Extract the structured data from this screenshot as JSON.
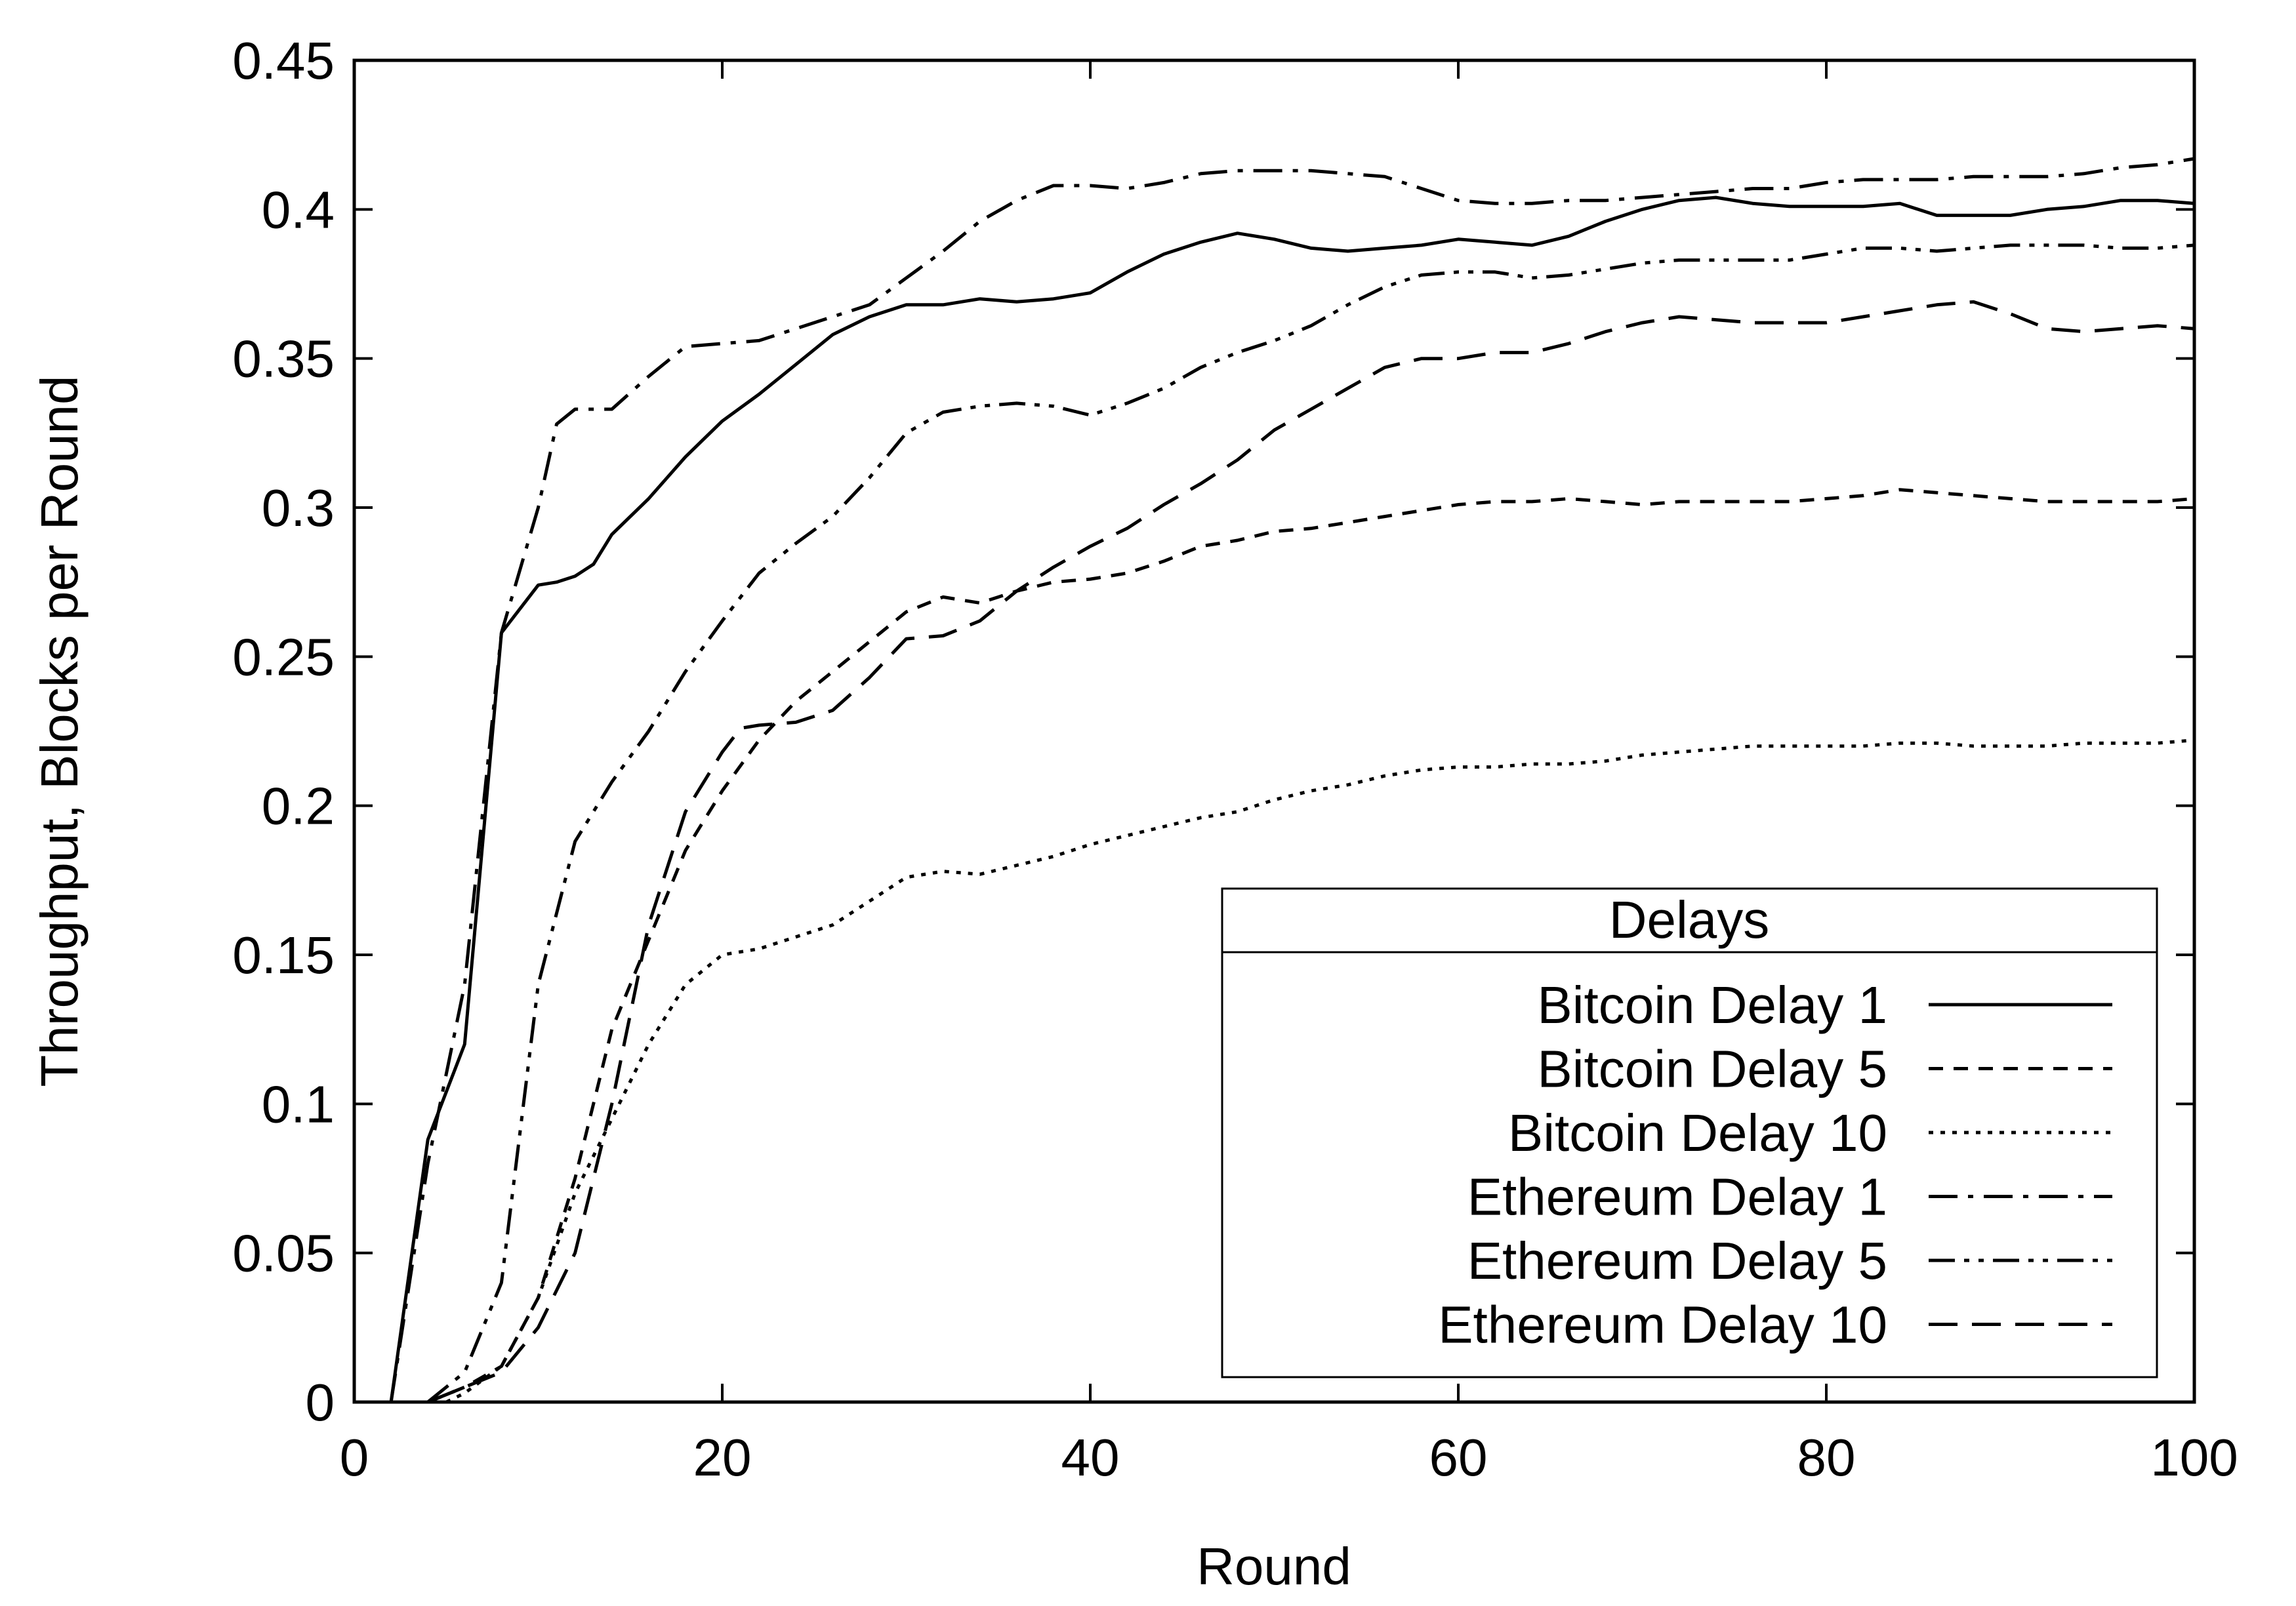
{
  "chart_data": {
    "type": "line",
    "title": "",
    "xlabel": "Round",
    "ylabel": "Throughput, Blocks per Round",
    "xlim": [
      0,
      100
    ],
    "ylim": [
      0,
      0.45
    ],
    "xticks": [
      0,
      20,
      40,
      60,
      80,
      100
    ],
    "xtick_labels": [
      "0",
      "20",
      "40",
      "60",
      "80",
      "100"
    ],
    "yticks": [
      0,
      0.05,
      0.1,
      0.15,
      0.2,
      0.25,
      0.3,
      0.35,
      0.4,
      0.45
    ],
    "ytick_labels": [
      "0",
      "0.05",
      "0.1",
      "0.15",
      "0.2",
      "0.25",
      "0.3",
      "0.35",
      "0.4",
      "0.45"
    ],
    "grid": false,
    "legend": {
      "title": "Delays",
      "placement": "bottom-right"
    },
    "series": [
      {
        "name": "Bitcoin Delay 1",
        "dash": "solid",
        "color": "#000000",
        "x": [
          2,
          4,
          6,
          8,
          10,
          11,
          12,
          13,
          14,
          16,
          18,
          20,
          22,
          24,
          26,
          28,
          30,
          32,
          34,
          36,
          38,
          40,
          42,
          44,
          46,
          48,
          50,
          52,
          54,
          56,
          58,
          60,
          62,
          64,
          66,
          68,
          70,
          72,
          74,
          76,
          78,
          80,
          82,
          84,
          86,
          88,
          90,
          92,
          94,
          96,
          98,
          100
        ],
        "y": [
          0,
          0.088,
          0.12,
          0.258,
          0.274,
          0.275,
          0.277,
          0.281,
          0.291,
          0.303,
          0.317,
          0.329,
          0.338,
          0.348,
          0.358,
          0.364,
          0.368,
          0.368,
          0.37,
          0.369,
          0.37,
          0.372,
          0.379,
          0.385,
          0.389,
          0.392,
          0.39,
          0.387,
          0.386,
          0.387,
          0.388,
          0.39,
          0.389,
          0.388,
          0.391,
          0.396,
          0.4,
          0.403,
          0.404,
          0.402,
          0.401,
          0.401,
          0.401,
          0.402,
          0.398,
          0.398,
          0.398,
          0.4,
          0.401,
          0.403,
          0.403,
          0.402
        ]
      },
      {
        "name": "Bitcoin Delay 5",
        "dash": "short-dash",
        "color": "#000000",
        "x": [
          4,
          6,
          8,
          10,
          12,
          14,
          16,
          18,
          20,
          22,
          24,
          26,
          28,
          30,
          32,
          34,
          36,
          38,
          40,
          42,
          44,
          46,
          48,
          50,
          52,
          54,
          56,
          58,
          60,
          62,
          64,
          66,
          68,
          70,
          72,
          74,
          76,
          78,
          80,
          82,
          84,
          86,
          88,
          90,
          92,
          94,
          96,
          98,
          100
        ],
        "y": [
          0,
          0.005,
          0.012,
          0.035,
          0.075,
          0.125,
          0.155,
          0.185,
          0.205,
          0.222,
          0.235,
          0.245,
          0.255,
          0.265,
          0.27,
          0.268,
          0.272,
          0.275,
          0.276,
          0.278,
          0.282,
          0.287,
          0.289,
          0.292,
          0.293,
          0.295,
          0.297,
          0.299,
          0.301,
          0.302,
          0.302,
          0.303,
          0.302,
          0.301,
          0.302,
          0.302,
          0.302,
          0.302,
          0.303,
          0.304,
          0.306,
          0.305,
          0.304,
          0.303,
          0.302,
          0.302,
          0.302,
          0.302,
          0.303
        ]
      },
      {
        "name": "Bitcoin Delay 10",
        "dash": "dotted",
        "color": "#000000",
        "x": [
          5,
          6,
          8,
          10,
          12,
          14,
          16,
          18,
          20,
          22,
          24,
          26,
          28,
          30,
          32,
          34,
          36,
          38,
          40,
          42,
          44,
          46,
          48,
          50,
          52,
          54,
          56,
          58,
          60,
          62,
          64,
          66,
          68,
          70,
          72,
          74,
          76,
          78,
          80,
          82,
          84,
          86,
          88,
          90,
          92,
          94,
          96,
          98,
          100
        ],
        "y": [
          0,
          0.003,
          0.012,
          0.035,
          0.07,
          0.095,
          0.12,
          0.14,
          0.15,
          0.152,
          0.156,
          0.16,
          0.168,
          0.176,
          0.178,
          0.177,
          0.18,
          0.183,
          0.187,
          0.19,
          0.193,
          0.196,
          0.198,
          0.202,
          0.205,
          0.207,
          0.21,
          0.212,
          0.213,
          0.213,
          0.214,
          0.214,
          0.215,
          0.217,
          0.218,
          0.219,
          0.22,
          0.22,
          0.22,
          0.22,
          0.221,
          0.221,
          0.22,
          0.22,
          0.22,
          0.221,
          0.221,
          0.221,
          0.222
        ]
      },
      {
        "name": "Ethereum Delay 1",
        "dash": "dash-dot",
        "color": "#000000",
        "x": [
          2,
          4,
          6,
          8,
          10,
          11,
          12,
          14,
          16,
          18,
          20,
          22,
          24,
          26,
          28,
          30,
          32,
          34,
          36,
          38,
          40,
          42,
          44,
          46,
          48,
          50,
          52,
          54,
          56,
          58,
          60,
          62,
          64,
          66,
          68,
          70,
          72,
          74,
          76,
          78,
          80,
          82,
          84,
          86,
          88,
          90,
          92,
          94,
          96,
          98,
          100
        ],
        "y": [
          0,
          0.08,
          0.14,
          0.258,
          0.3,
          0.328,
          0.333,
          0.333,
          0.344,
          0.354,
          0.355,
          0.356,
          0.36,
          0.364,
          0.368,
          0.377,
          0.386,
          0.396,
          0.403,
          0.408,
          0.408,
          0.407,
          0.409,
          0.412,
          0.413,
          0.413,
          0.413,
          0.412,
          0.411,
          0.407,
          0.403,
          0.402,
          0.402,
          0.403,
          0.403,
          0.404,
          0.405,
          0.406,
          0.407,
          0.407,
          0.409,
          0.41,
          0.41,
          0.41,
          0.411,
          0.411,
          0.411,
          0.412,
          0.414,
          0.415,
          0.417
        ]
      },
      {
        "name": "Ethereum Delay 5",
        "dash": "dash-dot-dot",
        "color": "#000000",
        "x": [
          4,
          6,
          8,
          10,
          12,
          14,
          16,
          18,
          20,
          22,
          24,
          26,
          28,
          30,
          32,
          34,
          36,
          38,
          40,
          42,
          44,
          46,
          48,
          50,
          52,
          54,
          56,
          58,
          60,
          62,
          64,
          66,
          68,
          70,
          72,
          74,
          76,
          78,
          80,
          82,
          84,
          86,
          88,
          90,
          92,
          94,
          96,
          98,
          100
        ],
        "y": [
          0,
          0.01,
          0.04,
          0.14,
          0.188,
          0.208,
          0.225,
          0.245,
          0.262,
          0.278,
          0.288,
          0.297,
          0.31,
          0.325,
          0.332,
          0.334,
          0.335,
          0.334,
          0.331,
          0.335,
          0.34,
          0.347,
          0.352,
          0.356,
          0.361,
          0.368,
          0.374,
          0.378,
          0.379,
          0.379,
          0.377,
          0.378,
          0.38,
          0.382,
          0.383,
          0.383,
          0.383,
          0.383,
          0.385,
          0.387,
          0.387,
          0.386,
          0.387,
          0.388,
          0.388,
          0.388,
          0.387,
          0.387,
          0.388
        ]
      },
      {
        "name": "Ethereum Delay 10",
        "dash": "long-dash",
        "color": "#000000",
        "x": [
          4,
          6,
          8,
          10,
          12,
          14,
          16,
          18,
          20,
          21,
          22,
          24,
          26,
          28,
          30,
          32,
          34,
          36,
          38,
          40,
          42,
          44,
          46,
          48,
          50,
          52,
          54,
          56,
          58,
          60,
          62,
          64,
          66,
          68,
          70,
          72,
          74,
          76,
          78,
          80,
          82,
          84,
          86,
          88,
          90,
          92,
          94,
          96,
          98,
          100
        ],
        "y": [
          0,
          0.005,
          0.01,
          0.025,
          0.05,
          0.1,
          0.16,
          0.198,
          0.218,
          0.226,
          0.227,
          0.228,
          0.232,
          0.243,
          0.256,
          0.257,
          0.262,
          0.272,
          0.28,
          0.287,
          0.293,
          0.301,
          0.308,
          0.316,
          0.326,
          0.333,
          0.34,
          0.347,
          0.35,
          0.35,
          0.352,
          0.352,
          0.355,
          0.359,
          0.362,
          0.364,
          0.363,
          0.362,
          0.362,
          0.362,
          0.364,
          0.366,
          0.368,
          0.369,
          0.365,
          0.36,
          0.359,
          0.36,
          0.361,
          0.36
        ]
      }
    ]
  }
}
